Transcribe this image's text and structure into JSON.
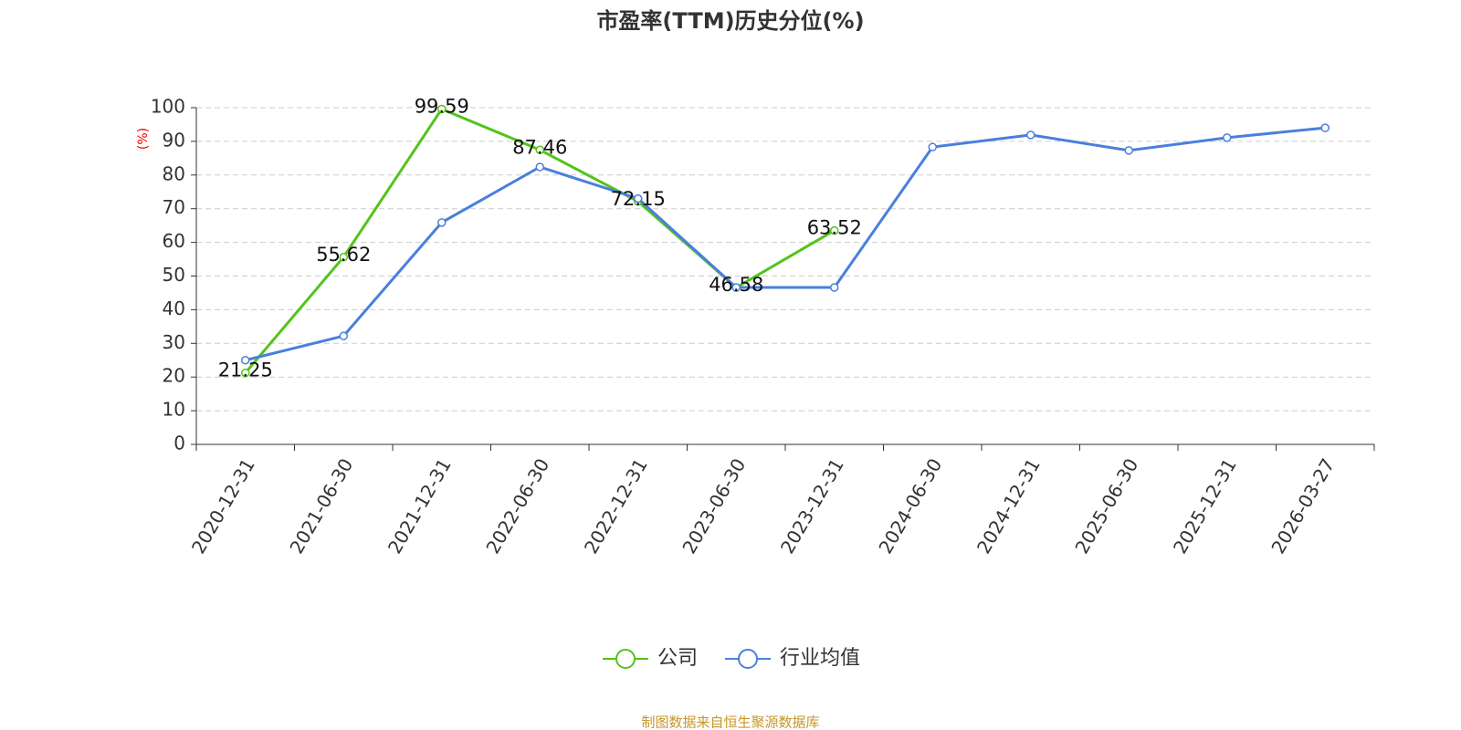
{
  "chart_data": {
    "type": "line",
    "title": "市盈率(TTM)历史分位(%)",
    "y_label": "(%)",
    "source": "制图数据来自恒生聚源数据库",
    "categories": [
      "2020-12-31",
      "2021-06-30",
      "2021-12-31",
      "2022-06-30",
      "2022-12-31",
      "2023-06-30",
      "2023-12-31",
      "2024-06-30",
      "2024-12-31",
      "2025-06-30",
      "2025-12-31",
      "2026-03-27"
    ],
    "series": [
      {
        "name": "公司",
        "color": "#52c41a",
        "show_labels": true,
        "values": [
          21.25,
          55.62,
          99.59,
          87.46,
          72.15,
          46.58,
          63.52,
          null,
          null,
          null,
          null,
          null
        ]
      },
      {
        "name": "行业均值",
        "color": "#4a7fdc",
        "show_labels": false,
        "values": [
          25,
          32.2,
          65.9,
          82.4,
          73,
          46.6,
          46.6,
          88.3,
          91.9,
          87.3,
          91.1,
          94
        ]
      }
    ],
    "ylim": [
      0,
      100
    ],
    "yticks": [
      0,
      10,
      20,
      30,
      40,
      50,
      60,
      70,
      80,
      90,
      100
    ],
    "grid": true,
    "legend": "bottom"
  }
}
